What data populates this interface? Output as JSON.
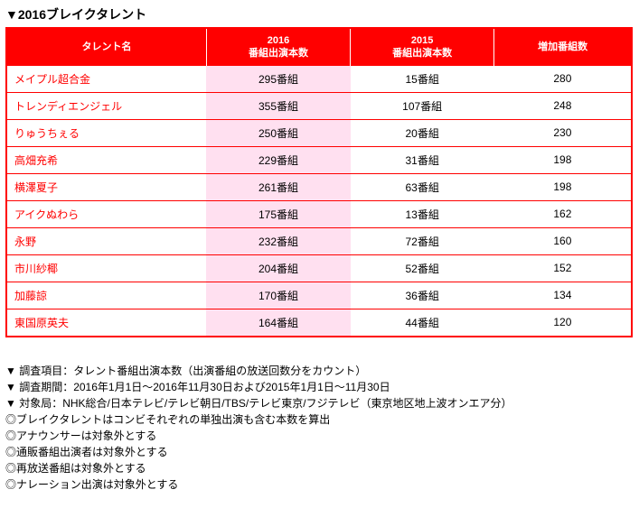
{
  "title": "▼2016ブレイクタレント",
  "table": {
    "headers": {
      "name": "タレント名",
      "c2016_l1": "2016",
      "c2016_l2": "番組出演本数",
      "c2015_l1": "2015",
      "c2015_l2": "番組出演本数",
      "inc": "増加番組数"
    },
    "rows": [
      {
        "name": "メイプル超合金",
        "c2016": "295番組",
        "c2015": "15番組",
        "inc": "280"
      },
      {
        "name": "トレンディエンジェル",
        "c2016": "355番組",
        "c2015": "107番組",
        "inc": "248"
      },
      {
        "name": "りゅうちぇる",
        "c2016": "250番組",
        "c2015": "20番組",
        "inc": "230"
      },
      {
        "name": "高畑充希",
        "c2016": "229番組",
        "c2015": "31番組",
        "inc": "198"
      },
      {
        "name": "横澤夏子",
        "c2016": "261番組",
        "c2015": "63番組",
        "inc": "198"
      },
      {
        "name": "アイクぬわら",
        "c2016": "175番組",
        "c2015": "13番組",
        "inc": "162"
      },
      {
        "name": "永野",
        "c2016": "232番組",
        "c2015": "72番組",
        "inc": "160"
      },
      {
        "name": "市川紗椰",
        "c2016": "204番組",
        "c2015": "52番組",
        "inc": "152"
      },
      {
        "name": "加藤諒",
        "c2016": "170番組",
        "c2015": "36番組",
        "inc": "134"
      },
      {
        "name": "東国原英夫",
        "c2016": "164番組",
        "c2015": "44番組",
        "inc": "120"
      }
    ]
  },
  "notes": [
    "▼ 調査項目：タレント番組出演本数（出演番組の放送回数分をカウント）",
    "▼ 調査期間：2016年1月1日～2016年11月30日および2015年1月1日～11月30日",
    "▼ 対象局：NHK総合/日本テレビ/テレビ朝日/TBS/テレビ東京/フジテレビ（東京地区地上波オンエア分）",
    "◎ブレイクタレントはコンビそれぞれの単独出演も含む本数を算出",
    "◎アナウンサーは対象外とする",
    "◎通販番組出演者は対象外とする",
    "◎再放送番組は対象外とする",
    "◎ナレーション出演は対象外とする"
  ]
}
